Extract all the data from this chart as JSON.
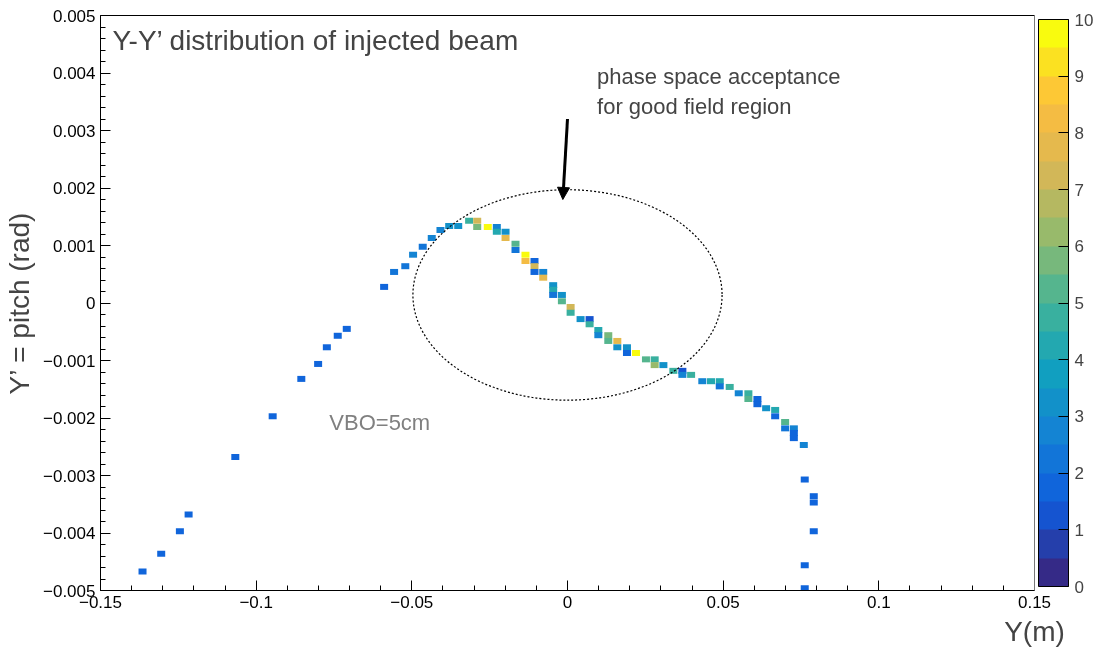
{
  "chart_data": {
    "type": "scatter",
    "title": "Y-Y’ distribution of injected beam",
    "xlabel": "Y(m)",
    "ylabel": "Y’ = pitch (rad)",
    "annotations": [
      "phase space acceptance\nfor good field region",
      "VBO=5cm"
    ],
    "marker": "square",
    "grid": false,
    "xlim": [
      -0.15,
      0.15
    ],
    "ylim": [
      -0.005,
      0.005
    ],
    "xticks": [
      {
        "value": -0.15,
        "label": "−0.15"
      },
      {
        "value": -0.1,
        "label": "−0.1"
      },
      {
        "value": -0.05,
        "label": "−0.05"
      },
      0,
      0.05,
      0.1,
      0.15
    ],
    "yticks": [
      {
        "value": -0.005,
        "label": "−0.005"
      },
      {
        "value": -0.004,
        "label": "−0.004"
      },
      {
        "value": -0.003,
        "label": "−0.003"
      },
      {
        "value": -0.002,
        "label": "−0.002"
      },
      {
        "value": -0.001,
        "label": "−0.001"
      },
      0,
      0.001,
      0.002,
      0.003,
      0.004,
      0.005
    ],
    "clim": [
      0,
      10
    ],
    "cticks": [
      0,
      1,
      2,
      3,
      4,
      5,
      6,
      7,
      8,
      9,
      10
    ],
    "x": [
      -0.1365,
      -0.1305,
      -0.1245,
      -0.1217,
      -0.1067,
      -0.0947,
      -0.0855,
      -0.0801,
      -0.0773,
      -0.0738,
      -0.0709,
      -0.0589,
      -0.0557,
      -0.0521,
      -0.0496,
      -0.0465,
      -0.0436,
      -0.0408,
      -0.038,
      -0.0351,
      -0.0316,
      -0.029,
      -0.029,
      -0.0256,
      -0.0227,
      -0.0227,
      -0.0199,
      -0.0199,
      -0.0167,
      -0.0167,
      -0.0135,
      -0.0135,
      -0.0106,
      -0.0106,
      -0.0106,
      -0.0078,
      -0.0078,
      -0.0046,
      -0.0046,
      -0.0046,
      -0.0018,
      -0.0018,
      0.001,
      0.001,
      0.0042,
      0.0071,
      0.0071,
      0.0099,
      0.0099,
      0.0131,
      0.0131,
      0.016,
      0.016,
      0.0191,
      0.0191,
      0.022,
      0.0252,
      0.028,
      0.028,
      0.0308,
      0.034,
      0.0369,
      0.0369,
      0.0397,
      0.0433,
      0.0461,
      0.0489,
      0.0489,
      0.0521,
      0.055,
      0.0581,
      0.0581,
      0.061,
      0.061,
      0.0638,
      0.0667,
      0.0667,
      0.0699,
      0.0699,
      0.0727,
      0.0727,
      0.0727,
      0.0759,
      0.0762,
      0.0791,
      0.0791,
      0.0791,
      0.0762,
      0.0762
    ],
    "values": [
      -0.00467,
      -0.00436,
      -0.00397,
      -0.00368,
      -0.00268,
      -0.00197,
      -0.00132,
      -0.00106,
      -0.00077,
      -0.00057,
      -0.00045,
      0.00028,
      0.00054,
      0.00064,
      0.00084,
      0.00098,
      0.00113,
      0.00127,
      0.00134,
      0.00134,
      0.00143,
      0.00143,
      0.00132,
      0.00132,
      0.00132,
      0.00124,
      0.00124,
      0.00113,
      0.00103,
      0.00092,
      0.00084,
      0.00073,
      0.00073,
      0.00064,
      0.00054,
      0.00054,
      0.00044,
      0.00031,
      0.00023,
      0.00014,
      0.00014,
      3e-05,
      -7e-05,
      -0.00017,
      -0.00028,
      -0.00028,
      -0.00037,
      -0.00047,
      -0.00056,
      -0.00056,
      -0.00066,
      -0.00066,
      -0.00077,
      -0.00077,
      -0.00087,
      -0.00087,
      -0.00098,
      -0.00098,
      -0.00108,
      -0.00108,
      -0.00118,
      -0.00118,
      -0.00125,
      -0.00125,
      -0.00136,
      -0.00136,
      -0.00136,
      -0.00145,
      -0.00146,
      -0.00157,
      -0.00157,
      -0.00167,
      -0.00167,
      -0.00176,
      -0.00183,
      -0.00186,
      -0.00197,
      -0.00207,
      -0.00218,
      -0.00218,
      -0.00226,
      -0.00235,
      -0.00247,
      -0.00307,
      -0.00336,
      -0.00347,
      -0.00397,
      -0.00456,
      -0.00496
    ],
    "cvalues": [
      1.5,
      1.5,
      1.5,
      1.5,
      1.5,
      1.5,
      1.5,
      1.5,
      1.5,
      1.5,
      1.5,
      1.5,
      2,
      2,
      2.5,
      2,
      2.5,
      2.5,
      3,
      3,
      4.5,
      7,
      5.5,
      10,
      2.5,
      4,
      3,
      7.5,
      5,
      2,
      9.5,
      8,
      1.5,
      7,
      1.5,
      2.5,
      7.5,
      3,
      4,
      2,
      3,
      5,
      7,
      4.5,
      3,
      1,
      4.5,
      4,
      2.5,
      5.5,
      5,
      7.5,
      3,
      3,
      1.5,
      10,
      5,
      4.5,
      6,
      3,
      4.5,
      1,
      2.5,
      4.5,
      2.5,
      4,
      4,
      2,
      4.5,
      2.5,
      4.5,
      5,
      1.5,
      1.5,
      3,
      4,
      1.5,
      5,
      2,
      2.5,
      1.5,
      1.5,
      2.5,
      1.5,
      1.5,
      1.5,
      1.5,
      1.5,
      1.5
    ]
  }
}
